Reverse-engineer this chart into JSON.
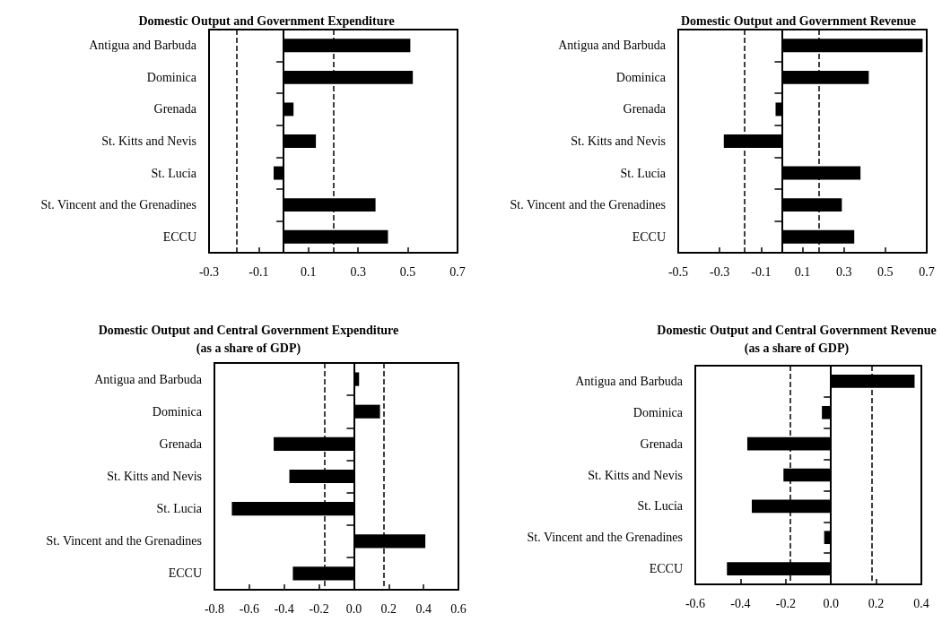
{
  "chart_data": [
    {
      "type": "bar",
      "orientation": "horizontal",
      "title": "Domestic Output and Government Expenditure",
      "categories": [
        "Antigua and Barbuda",
        "Dominica",
        "Grenada",
        "St. Kitts and Nevis",
        "St. Lucia",
        "St. Vincent and the Grenadines",
        "ECCU"
      ],
      "values": [
        0.51,
        0.52,
        0.04,
        0.13,
        -0.04,
        0.37,
        0.42
      ],
      "color": "#000000",
      "xlim": [
        -0.3,
        0.7
      ],
      "xticks": [
        -0.3,
        -0.1,
        0.1,
        0.3,
        0.5,
        0.7
      ],
      "grid": false,
      "ref_lines": [
        {
          "axis": "x",
          "value": -0.19,
          "line_style": "dashed",
          "color": "#000000"
        },
        {
          "axis": "x",
          "value": 0.2,
          "line_style": "dashed",
          "color": "#000000"
        }
      ]
    },
    {
      "type": "bar",
      "orientation": "horizontal",
      "title": "Domestic Output and Government Revenue",
      "categories": [
        "Antigua and Barbuda",
        "Dominica",
        "Grenada",
        "St. Kitts and Nevis",
        "St. Lucia",
        "St. Vincent and the Grenadines",
        "ECCU"
      ],
      "values": [
        0.68,
        0.42,
        -0.03,
        -0.28,
        0.38,
        0.29,
        0.35
      ],
      "color": "#000000",
      "xlim": [
        -0.5,
        0.7
      ],
      "xticks": [
        -0.5,
        -0.3,
        -0.1,
        0.1,
        0.3,
        0.5,
        0.7
      ],
      "grid": false,
      "ref_lines": [
        {
          "axis": "x",
          "value": -0.18,
          "line_style": "dashed",
          "color": "#000000"
        },
        {
          "axis": "x",
          "value": 0.18,
          "line_style": "dashed",
          "color": "#000000"
        }
      ]
    },
    {
      "type": "bar",
      "orientation": "horizontal",
      "title": "Domestic Output and Central Government Expenditure\n(as a share of GDP)",
      "categories": [
        "Antigua and Barbuda",
        "Dominica",
        "Grenada",
        "St. Kitts and Nevis",
        "St. Lucia",
        "St. Vincent and the Grenadines",
        "ECCU"
      ],
      "values": [
        0.03,
        0.15,
        -0.46,
        -0.37,
        -0.7,
        0.41,
        -0.35
      ],
      "color": "#000000",
      "xlim": [
        -0.8,
        0.6
      ],
      "xticks": [
        -0.8,
        -0.6,
        -0.4,
        -0.2,
        {
          "value": 0,
          "label": "0.0"
        },
        0.2,
        0.4,
        0.6
      ],
      "ref_lines": [
        {
          "axis": "x",
          "value": -0.17,
          "line_style": "dashed",
          "color": "#000000"
        },
        {
          "axis": "x",
          "value": 0.17,
          "line_style": "dashed",
          "color": "#000000"
        }
      ]
    },
    {
      "type": "bar",
      "orientation": "horizontal",
      "title": "Domestic Output and Central Government Revenue\n(as a share of GDP)",
      "categories": [
        "Antigua and Barbuda",
        "Dominica",
        "Grenada",
        "St. Kitts and Nevis",
        "St. Lucia",
        "St. Vincent and the Grenadines",
        "ECCU"
      ],
      "values": [
        0.37,
        -0.04,
        -0.37,
        -0.21,
        -0.35,
        -0.03,
        -0.46
      ],
      "color": "#000000",
      "xlim": [
        -0.6,
        0.4
      ],
      "xticks": [
        -0.6,
        -0.4,
        -0.2,
        {
          "value": 0,
          "label": "0.0"
        },
        0.2,
        0.4
      ],
      "ref_lines": [
        {
          "axis": "x",
          "value": -0.18,
          "line_style": "dashed",
          "color": "#000000"
        },
        {
          "axis": "x",
          "value": 0.18,
          "line_style": "dashed",
          "color": "#000000"
        }
      ]
    }
  ]
}
